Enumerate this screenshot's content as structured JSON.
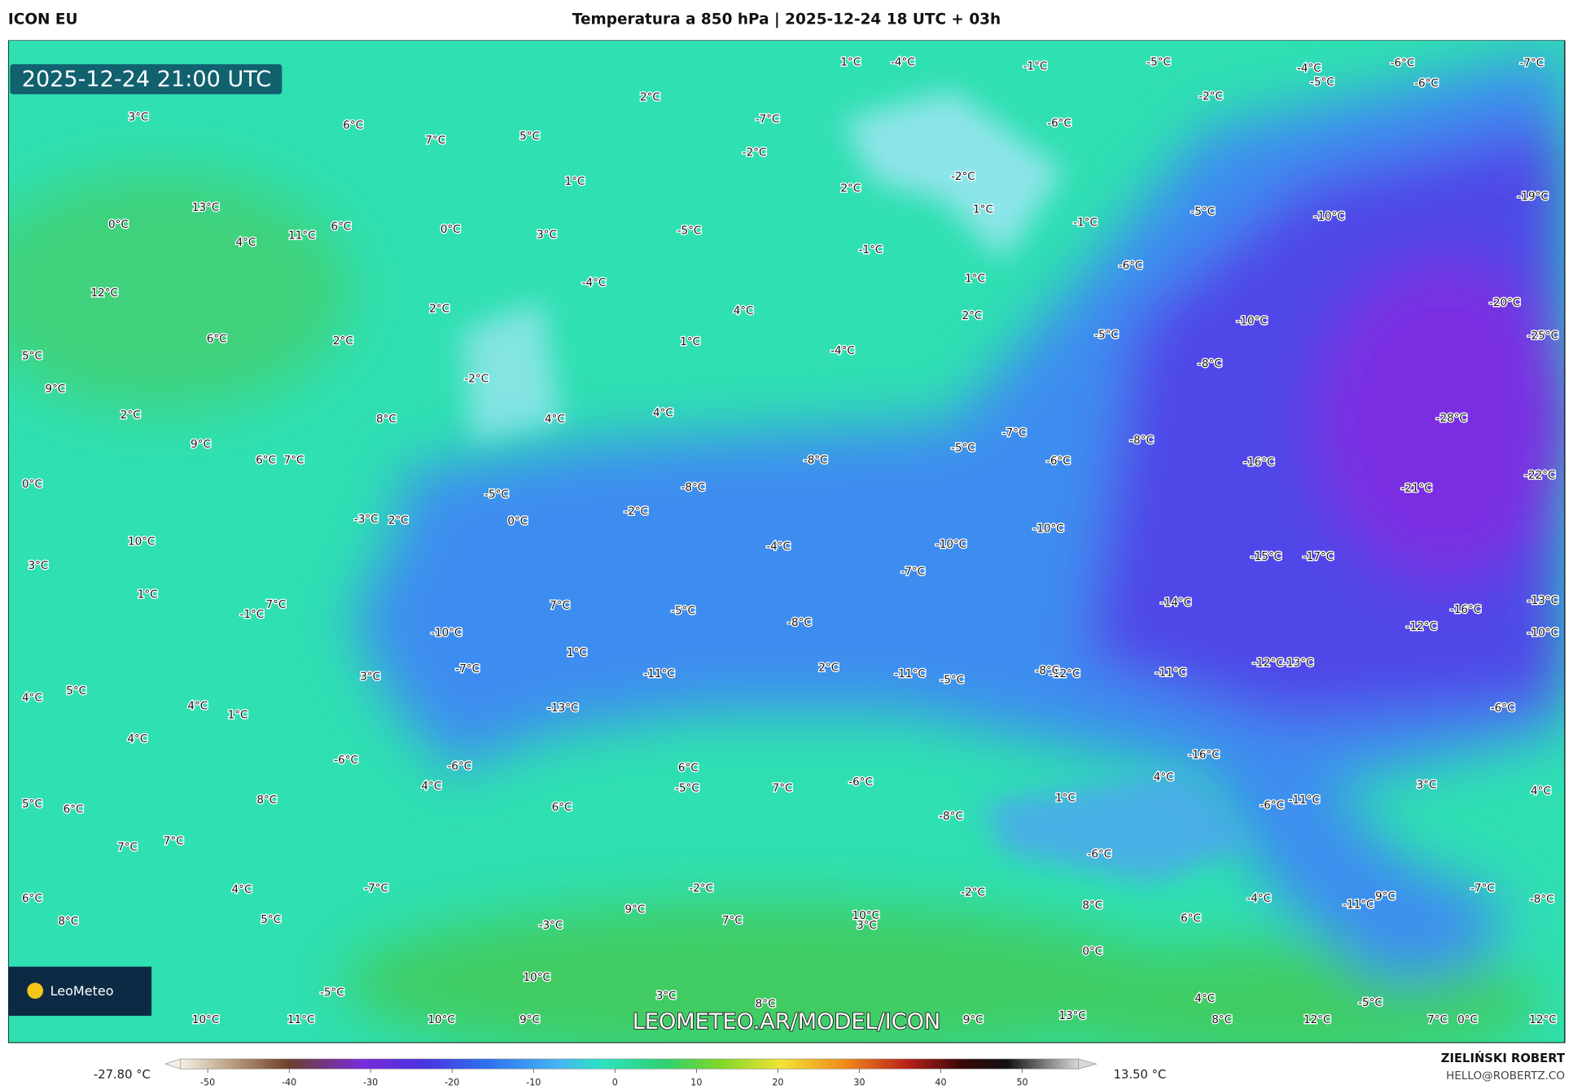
{
  "header": {
    "model": "ICON EU",
    "title": "Temperatura a 850 hPa | 2025-12-24 18 UTC + 03h"
  },
  "map": {
    "valid_time": "2025-12-24 21:00 UTC",
    "logo": "LeoMeteo",
    "watermark": "LEOMETEO.AR/MODEL/ICON",
    "labels": [
      "3°C",
      "6°C",
      "7°C",
      "5°C",
      "2°C",
      "1°C",
      "13°C",
      "0°C",
      "6°C",
      "4°C",
      "11°C",
      "0°C",
      "3°C",
      "12°C",
      "5°C",
      "9°C",
      "2°C",
      "6°C",
      "2°C",
      "2°C",
      "9°C",
      "0°C",
      "10°C",
      "3°C",
      "1°C",
      "-1°C",
      "7°C",
      "4°C",
      "5°C",
      "4°C",
      "1°C",
      "4°C",
      "5°C",
      "6°C",
      "7°C",
      "7°C",
      "6°C",
      "8°C",
      "4°C",
      "5°C",
      "-2°C",
      "-5°C",
      "0°C",
      "-4°C",
      "1°C",
      "4°C",
      "4°C",
      "-5°C",
      "-2°C",
      "-7°C",
      "-1°C",
      "1°C",
      "-6°C",
      "-2°C",
      "-5°C",
      "-5°C",
      "-10°C",
      "-6°C",
      "-5°C",
      "-10°C",
      "-8°C",
      "-28°C",
      "-16°C",
      "-21°C",
      "-8°C",
      "-7°C",
      "-6°C",
      "-8°C",
      "-8°C",
      "-2°C",
      "-4°C",
      "-10°C",
      "-10°C",
      "-7°C",
      "-15°C",
      "-17°C",
      "-14°C",
      "-5°C",
      "-8°C",
      "-10°C",
      "-7°C",
      "-11°C",
      "-11°C",
      "-12°C",
      "-11°C",
      "-13°C",
      "-16°C",
      "-6°C",
      "-6°C",
      "4°C",
      "-5°C",
      "7°C",
      "-6°C",
      "4°C",
      "1°C",
      "-6°C",
      "-7°C",
      "-2°C",
      "7°C",
      "9°C",
      "-3°C",
      "10°C",
      "-2°C",
      "10°C",
      "3°C",
      "8°C",
      "-5°C",
      "10°C",
      "11°C",
      "10°C",
      "9°C",
      "9°C",
      "13°C",
      "8°C",
      "12°C",
      "7°C",
      "0°C",
      "12°C",
      "-5°C",
      "4°C",
      "-4°C",
      "-11°C",
      "9°C",
      "-7°C",
      "-8°C",
      "4°C",
      "3°C",
      "-6°C",
      "-11°C",
      "-12°C",
      "-13°C",
      "-16°C",
      "-12°C",
      "-10°C",
      "-13°C",
      "-22°C",
      "-25°C",
      "-20°C",
      "-19°C",
      "-6°C",
      "-6°C",
      "-4°C",
      "-5°C",
      "-7°C",
      "-4°C",
      "1°C",
      "-1°C",
      "-2°C",
      "1°C",
      "-1°C",
      "2°C",
      "-4°C",
      "4°C",
      "2°C",
      "-5°C",
      "8°C",
      "6°C",
      "7°C",
      "-3°C",
      "2°C",
      "3°C",
      "7°C",
      "1°C",
      "2°C",
      "-5°C",
      "-8°C",
      "8°C",
      "6°C",
      "6°C",
      "-8°C",
      "8°C",
      "6°C",
      "0°C",
      "3°C",
      "-6°C"
    ]
  },
  "colorbar": {
    "min_label": "-27.80 °C",
    "max_label": "13.50 °C",
    "ticks": [
      -50,
      -40,
      -30,
      -20,
      -10,
      0,
      10,
      20,
      30,
      40,
      50
    ]
  },
  "footer": {
    "author": "ZIELIŃSKI ROBERT",
    "email": "HELLO@ROBERTZ.CO"
  }
}
